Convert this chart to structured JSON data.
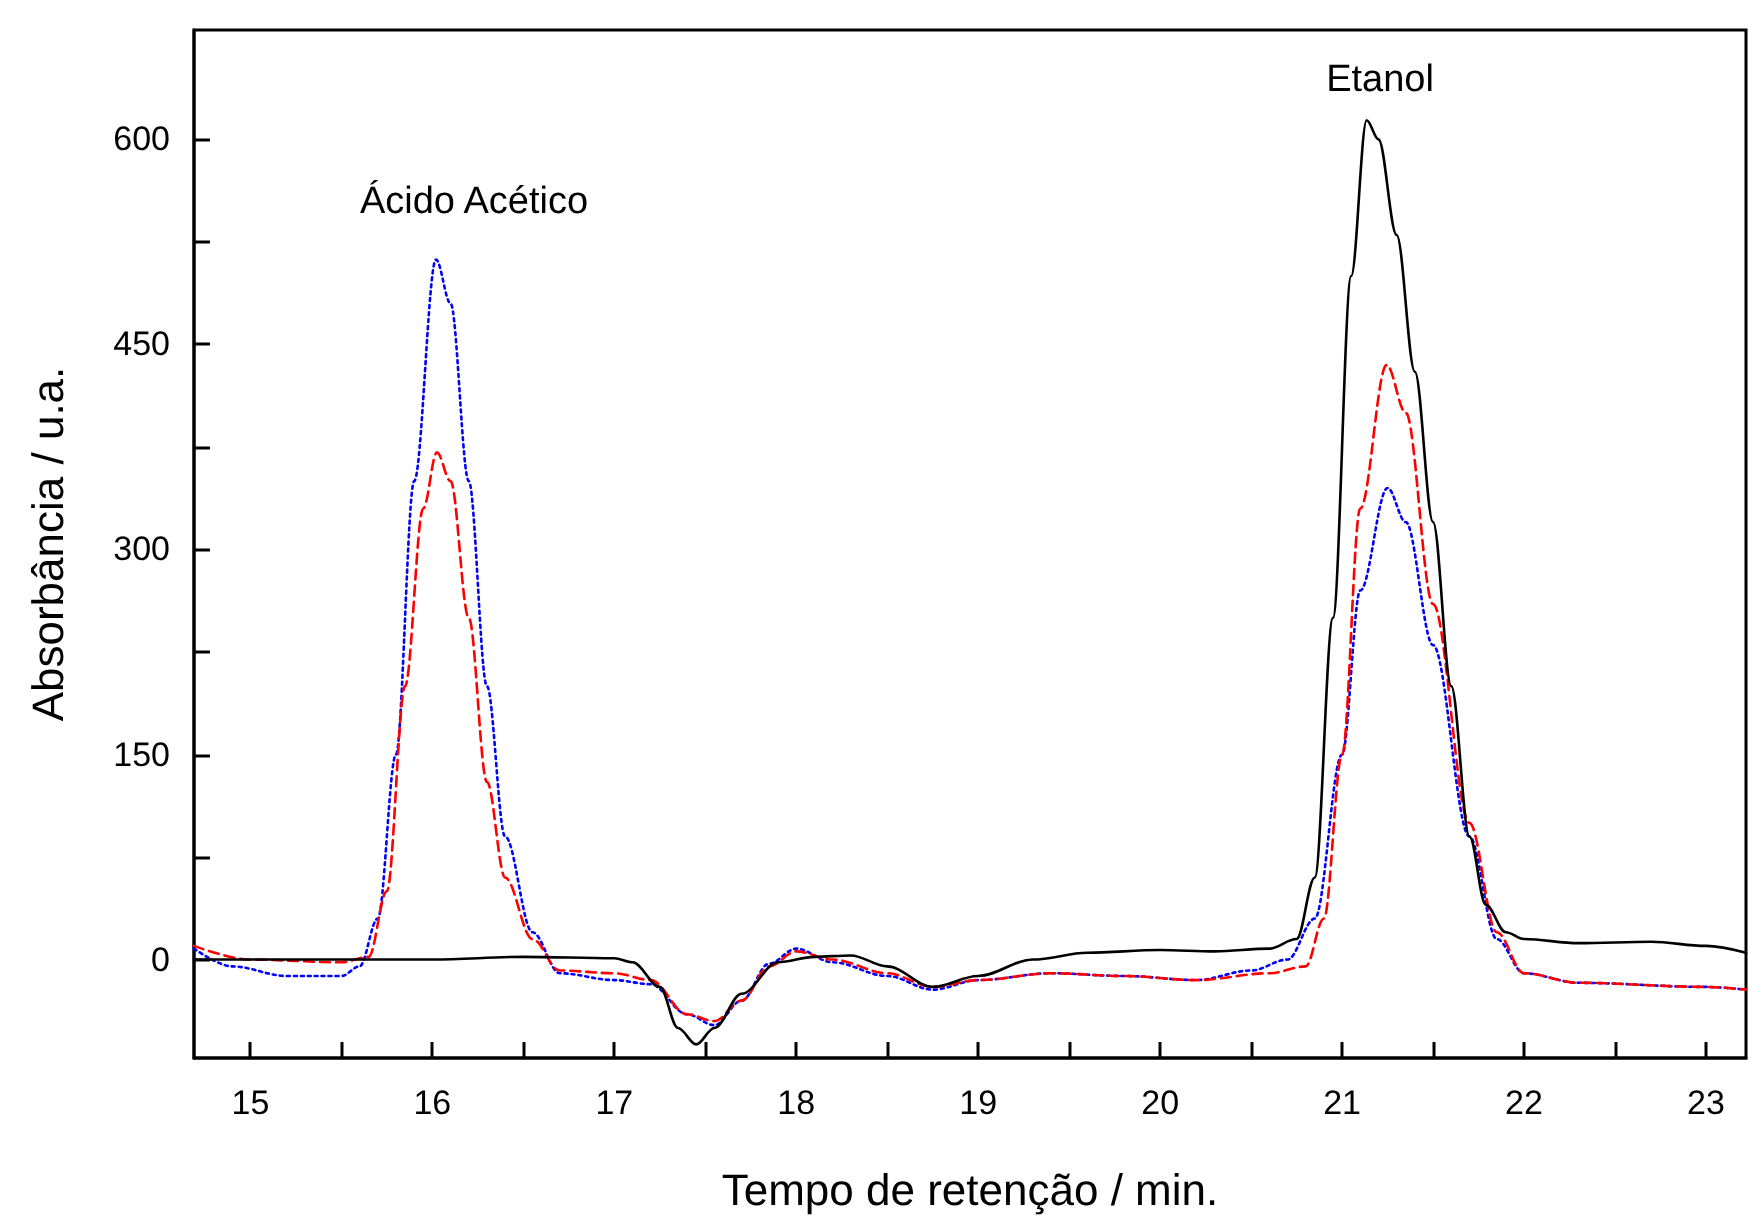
{
  "chart_data": {
    "type": "line",
    "xlabel": "Tempo de retenção / min.",
    "ylabel": "Absorbância / u.a.",
    "xlim": [
      14.69,
      23.22
    ],
    "ylim": [
      -72,
      680
    ],
    "xticks": [
      15,
      {
        "value": 15.5,
        "label": null
      },
      16,
      {
        "value": 16.5,
        "label": null
      },
      17,
      {
        "value": 17.5,
        "label": null
      },
      18,
      {
        "value": 18.5,
        "label": null
      },
      19,
      {
        "value": 19.5,
        "label": null
      },
      20,
      {
        "value": 20.5,
        "label": null
      },
      21,
      {
        "value": 21.5,
        "label": null
      },
      22,
      {
        "value": 22.5,
        "label": null
      },
      23
    ],
    "yticks": [
      0,
      {
        "value": 75,
        "label": null
      },
      150,
      {
        "value": 225,
        "label": null
      },
      300,
      {
        "value": 375,
        "label": null
      },
      450,
      {
        "value": 525,
        "label": null
      },
      600
    ],
    "grid": false,
    "marker": "none",
    "annotations": [
      "Ácido Acético",
      "Etanol"
    ],
    "series": [
      {
        "color": "#000000",
        "line_style": "solid",
        "x": [
          14.69,
          15.0,
          15.5,
          16.0,
          16.5,
          17.0,
          17.1,
          17.25,
          17.35,
          17.45,
          17.55,
          17.7,
          17.9,
          18.1,
          18.3,
          18.5,
          18.75,
          19.0,
          19.3,
          19.6,
          20.0,
          20.3,
          20.6,
          20.75,
          20.85,
          20.95,
          21.05,
          21.135,
          21.2,
          21.3,
          21.4,
          21.5,
          21.6,
          21.7,
          21.79,
          21.9,
          22.0,
          22.3,
          22.7,
          23.0,
          23.22
        ],
        "values": [
          0,
          0,
          0,
          0,
          2,
          1,
          -2,
          -20,
          -50,
          -62,
          -50,
          -25,
          -2,
          2,
          3,
          -5,
          -20,
          -12,
          0,
          5,
          7,
          6,
          8,
          15,
          60,
          250,
          500,
          614,
          600,
          530,
          430,
          320,
          200,
          90,
          40,
          20,
          15,
          12,
          13,
          10,
          5
        ]
      },
      {
        "color": "#ff0000",
        "line_style": "dashed",
        "x": [
          14.69,
          15.0,
          15.5,
          15.65,
          15.75,
          15.85,
          15.95,
          16.025,
          16.1,
          16.2,
          16.3,
          16.4,
          16.55,
          16.7,
          17.0,
          17.2,
          17.4,
          17.55,
          17.7,
          17.85,
          18.0,
          18.2,
          18.5,
          18.75,
          19.0,
          19.4,
          19.8,
          20.2,
          20.6,
          20.8,
          20.9,
          21.0,
          21.1,
          21.245,
          21.35,
          21.5,
          21.7,
          21.85,
          22.0,
          22.3,
          23.0,
          23.22
        ],
        "values": [
          10,
          0,
          -2,
          2,
          50,
          200,
          330,
          371,
          350,
          250,
          130,
          60,
          15,
          -8,
          -10,
          -15,
          -40,
          -45,
          -30,
          -5,
          6,
          0,
          -10,
          -20,
          -15,
          -10,
          -12,
          -15,
          -10,
          -5,
          30,
          150,
          330,
          435,
          400,
          260,
          100,
          20,
          -10,
          -17,
          -20,
          -22
        ]
      },
      {
        "color": "#0000ff",
        "line_style": "dotted",
        "x": [
          14.69,
          14.9,
          15.2,
          15.5,
          15.6,
          15.7,
          15.8,
          15.9,
          16.02,
          16.1,
          16.2,
          16.3,
          16.4,
          16.55,
          16.7,
          17.0,
          17.2,
          17.4,
          17.55,
          17.7,
          17.85,
          18.0,
          18.2,
          18.5,
          18.75,
          19.0,
          19.4,
          19.8,
          20.2,
          20.5,
          20.7,
          20.85,
          21.0,
          21.1,
          21.25,
          21.35,
          21.5,
          21.7,
          21.85,
          22.0,
          22.3,
          23.0,
          23.22
        ],
        "values": [
          8,
          -5,
          -12,
          -12,
          -5,
          30,
          150,
          350,
          512,
          480,
          350,
          200,
          90,
          20,
          -10,
          -15,
          -18,
          -40,
          -48,
          -30,
          -3,
          8,
          -2,
          -12,
          -22,
          -15,
          -10,
          -12,
          -15,
          -8,
          0,
          30,
          150,
          270,
          345,
          320,
          230,
          90,
          15,
          -10,
          -17,
          -20,
          -22
        ]
      }
    ]
  }
}
